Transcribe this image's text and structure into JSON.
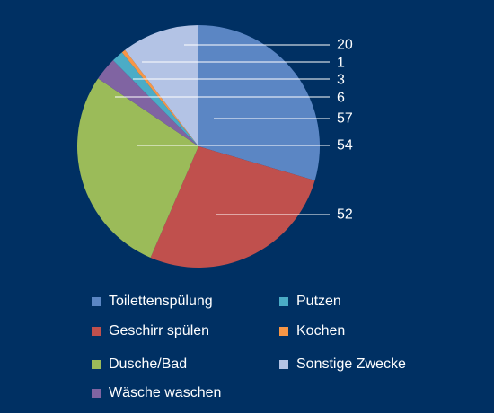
{
  "chart_data": {
    "type": "pie",
    "slices": [
      {
        "name": "Toilettenspülung",
        "value": 57,
        "color": "#5b86c4"
      },
      {
        "name": "Geschirr spülen",
        "value": 52,
        "color": "#c0504d"
      },
      {
        "name": "Dusche/Bad",
        "value": 54,
        "color": "#9bbb59"
      },
      {
        "name": "Wäsche waschen",
        "value": 6,
        "color": "#8064a2"
      },
      {
        "name": "Putzen",
        "value": 3,
        "color": "#4bacc6"
      },
      {
        "name": "Kochen",
        "value": 1,
        "color": "#f79646"
      },
      {
        "name": "Sonstige Zwecke",
        "value": 20,
        "color": "#b3c3e5"
      }
    ],
    "legend_order": [
      "Toilettenspülung",
      "Putzen",
      "Geschirr spülen",
      "Kochen",
      "Dusche/Bad",
      "Sonstige Zwecke",
      "Wäsche waschen"
    ],
    "legend_placement": "bottom",
    "start_angle": "top",
    "direction": "clockwise"
  },
  "colors": {
    "background": "#003063",
    "text": "#ffffff",
    "leader_line": "#ffffff"
  }
}
